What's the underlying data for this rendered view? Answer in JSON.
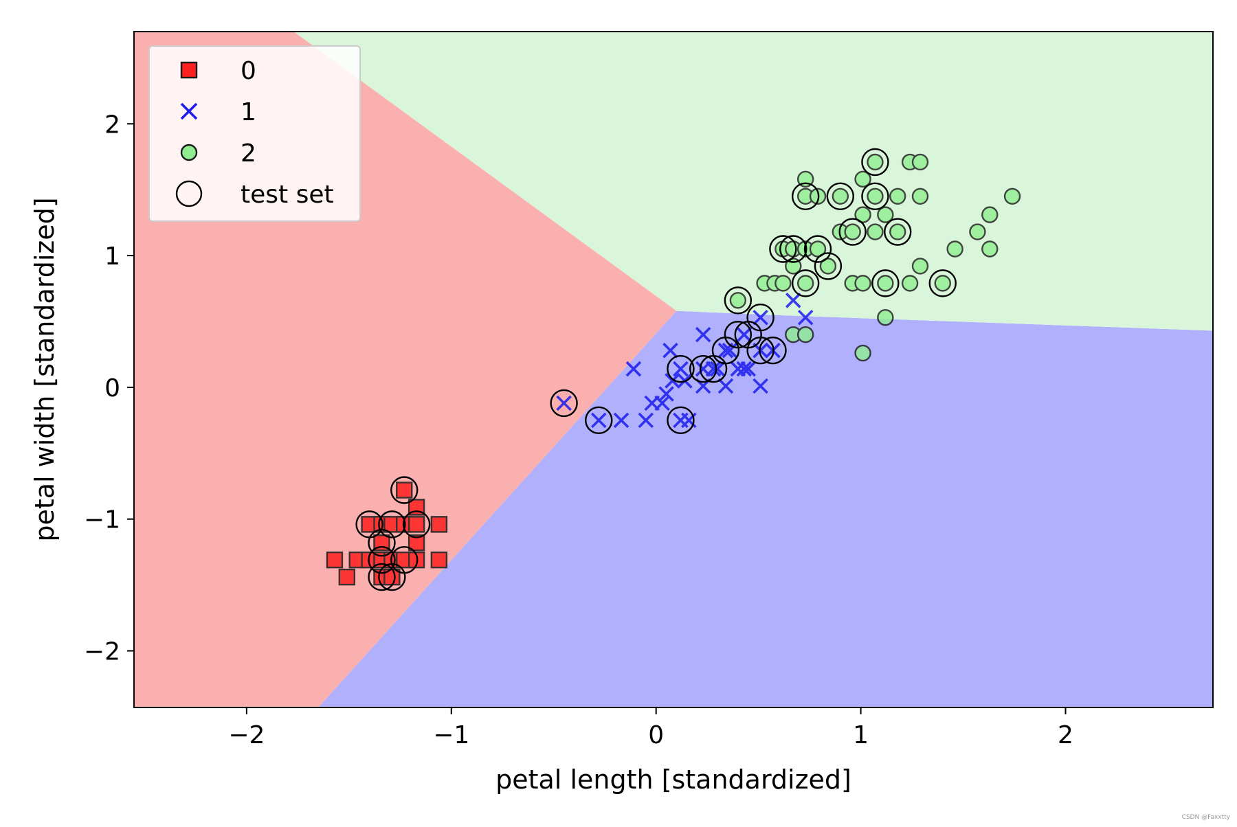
{
  "chart_data": {
    "type": "scatter",
    "title": "",
    "xlabel": "petal length [standardized]",
    "ylabel": "petal width [standardized]",
    "xlim": [
      -2.55,
      2.72
    ],
    "ylim": [
      -2.43,
      2.7
    ],
    "xticks": [
      -2,
      -1,
      0,
      1,
      2
    ],
    "yticks": [
      -2,
      -1,
      0,
      1,
      2
    ],
    "xtick_labels": [
      "−2",
      "−1",
      "0",
      "1",
      "2"
    ],
    "ytick_labels": [
      "−2",
      "−1",
      "0",
      "1",
      "2"
    ],
    "grid": false,
    "legend_position": "top-left",
    "decision_regions": [
      {
        "class": "0",
        "color": "#fbb0b0",
        "polygon": [
          [
            -2.55,
            2.7
          ],
          [
            -1.77,
            2.7
          ],
          [
            0.1,
            0.58
          ],
          [
            -1.65,
            -2.43
          ],
          [
            -2.55,
            -2.43
          ]
        ]
      },
      {
        "class": "1",
        "color": "#b0b0fc",
        "polygon": [
          [
            0.1,
            0.58
          ],
          [
            0.55,
            0.55
          ],
          [
            2.72,
            0.43
          ],
          [
            2.72,
            -2.43
          ],
          [
            -1.65,
            -2.43
          ]
        ]
      },
      {
        "class": "2",
        "color": "#daf6da",
        "polygon": [
          [
            -1.77,
            2.7
          ],
          [
            2.72,
            2.7
          ],
          [
            2.72,
            0.43
          ],
          [
            0.55,
            0.55
          ],
          [
            0.1,
            0.58
          ]
        ]
      }
    ],
    "series": [
      {
        "name": "0",
        "marker": "square",
        "color": "#ff2020",
        "points": [
          [
            -1.57,
            -1.31
          ],
          [
            -1.51,
            -1.44
          ],
          [
            -1.46,
            -1.31
          ],
          [
            -1.4,
            -1.31
          ],
          [
            -1.4,
            -1.04
          ],
          [
            -1.34,
            -1.31
          ],
          [
            -1.34,
            -1.18
          ],
          [
            -1.34,
            -1.04
          ],
          [
            -1.34,
            -1.44
          ],
          [
            -1.29,
            -1.31
          ],
          [
            -1.29,
            -1.04
          ],
          [
            -1.29,
            -1.44
          ],
          [
            -1.23,
            -1.31
          ],
          [
            -1.23,
            -1.04
          ],
          [
            -1.23,
            -0.78
          ],
          [
            -1.17,
            -1.31
          ],
          [
            -1.17,
            -1.04
          ],
          [
            -1.17,
            -0.91
          ],
          [
            -1.17,
            -1.18
          ],
          [
            -1.06,
            -1.31
          ],
          [
            -1.06,
            -1.04
          ]
        ]
      },
      {
        "name": "1",
        "marker": "x",
        "color": "#1c1cee",
        "points": [
          [
            -0.45,
            -0.12
          ],
          [
            -0.28,
            -0.25
          ],
          [
            -0.17,
            -0.25
          ],
          [
            -0.11,
            0.14
          ],
          [
            -0.05,
            -0.25
          ],
          [
            -0.02,
            -0.12
          ],
          [
            0.03,
            -0.12
          ],
          [
            0.05,
            -0.05
          ],
          [
            0.07,
            0.28
          ],
          [
            0.08,
            0.05
          ],
          [
            0.12,
            0.14
          ],
          [
            0.12,
            -0.25
          ],
          [
            0.14,
            0.05
          ],
          [
            0.16,
            -0.25
          ],
          [
            0.23,
            0.14
          ],
          [
            0.23,
            0.4
          ],
          [
            0.23,
            0.01
          ],
          [
            0.28,
            0.14
          ],
          [
            0.3,
            0.14
          ],
          [
            0.34,
            0.01
          ],
          [
            0.34,
            0.28
          ],
          [
            0.36,
            0.28
          ],
          [
            0.4,
            0.14
          ],
          [
            0.43,
            0.14
          ],
          [
            0.43,
            0.4
          ],
          [
            0.45,
            0.14
          ],
          [
            0.51,
            0.01
          ],
          [
            0.51,
            0.53
          ],
          [
            0.51,
            0.28
          ],
          [
            0.57,
            0.28
          ],
          [
            0.67,
            0.66
          ],
          [
            0.73,
            0.53
          ]
        ]
      },
      {
        "name": "2",
        "marker": "circle",
        "color": "#90ee90",
        "points": [
          [
            0.4,
            0.66
          ],
          [
            0.53,
            0.79
          ],
          [
            0.58,
            0.79
          ],
          [
            0.62,
            0.79
          ],
          [
            0.62,
            1.05
          ],
          [
            0.67,
            1.05
          ],
          [
            0.67,
            1.05
          ],
          [
            0.67,
            0.92
          ],
          [
            0.67,
            0.4
          ],
          [
            0.73,
            1.05
          ],
          [
            0.73,
            0.79
          ],
          [
            0.73,
            1.45
          ],
          [
            0.73,
            1.58
          ],
          [
            0.73,
            0.4
          ],
          [
            0.79,
            1.05
          ],
          [
            0.79,
            1.45
          ],
          [
            0.84,
            0.92
          ],
          [
            0.9,
            1.45
          ],
          [
            0.9,
            1.18
          ],
          [
            0.96,
            1.18
          ],
          [
            0.96,
            0.79
          ],
          [
            1.01,
            1.58
          ],
          [
            1.01,
            1.31
          ],
          [
            1.01,
            0.26
          ],
          [
            1.01,
            0.79
          ],
          [
            1.07,
            1.71
          ],
          [
            1.07,
            1.45
          ],
          [
            1.07,
            1.18
          ],
          [
            1.12,
            1.31
          ],
          [
            1.12,
            0.79
          ],
          [
            1.12,
            0.53
          ],
          [
            1.18,
            1.45
          ],
          [
            1.18,
            1.18
          ],
          [
            1.24,
            1.71
          ],
          [
            1.24,
            0.79
          ],
          [
            1.29,
            1.71
          ],
          [
            1.29,
            1.45
          ],
          [
            1.29,
            0.92
          ],
          [
            1.4,
            0.79
          ],
          [
            1.46,
            1.05
          ],
          [
            1.57,
            1.18
          ],
          [
            1.63,
            1.31
          ],
          [
            1.63,
            1.05
          ],
          [
            1.74,
            1.45
          ]
        ]
      }
    ],
    "test_set": {
      "name": "test set",
      "marker": "open-circle",
      "points": [
        [
          -1.4,
          -1.04
        ],
        [
          -1.34,
          -1.18
        ],
        [
          -1.34,
          -1.31
        ],
        [
          -1.34,
          -1.44
        ],
        [
          -1.29,
          -1.04
        ],
        [
          -1.29,
          -1.44
        ],
        [
          -1.23,
          -1.31
        ],
        [
          -1.23,
          -0.78
        ],
        [
          -1.17,
          -1.04
        ],
        [
          -0.45,
          -0.12
        ],
        [
          -0.28,
          -0.25
        ],
        [
          0.12,
          0.14
        ],
        [
          0.12,
          -0.25
        ],
        [
          0.23,
          0.14
        ],
        [
          0.28,
          0.14
        ],
        [
          0.34,
          0.28
        ],
        [
          0.4,
          0.66
        ],
        [
          0.4,
          0.4
        ],
        [
          0.45,
          0.4
        ],
        [
          0.51,
          0.53
        ],
        [
          0.51,
          0.28
        ],
        [
          0.57,
          0.28
        ],
        [
          0.62,
          1.05
        ],
        [
          0.67,
          1.05
        ],
        [
          0.73,
          1.45
        ],
        [
          0.73,
          0.79
        ],
        [
          0.79,
          1.05
        ],
        [
          0.84,
          0.92
        ],
        [
          0.9,
          1.45
        ],
        [
          0.96,
          1.18
        ],
        [
          1.07,
          1.71
        ],
        [
          1.07,
          1.45
        ],
        [
          1.12,
          0.79
        ],
        [
          1.18,
          1.18
        ],
        [
          1.4,
          0.79
        ]
      ]
    }
  },
  "legend": {
    "items": [
      {
        "label": "0",
        "marker": "square",
        "color": "#ff2020"
      },
      {
        "label": "1",
        "marker": "x",
        "color": "#1c1cee"
      },
      {
        "label": "2",
        "marker": "circle",
        "color": "#90ee90"
      },
      {
        "label": "test set",
        "marker": "open-circle",
        "color": "#000000"
      }
    ]
  },
  "watermark": "CSDN @Faxxtty"
}
